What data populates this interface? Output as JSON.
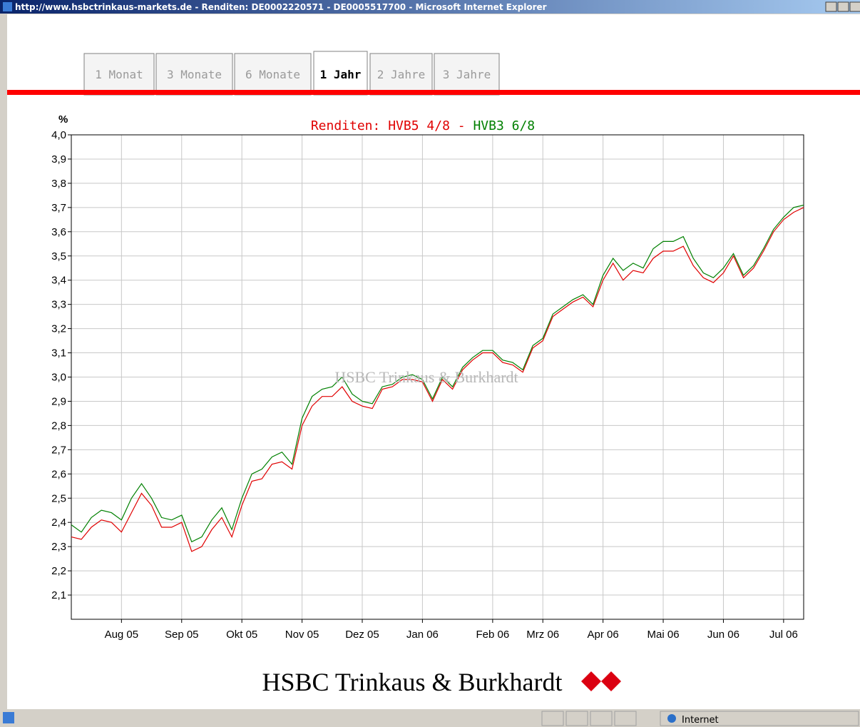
{
  "window": {
    "title": "http://www.hsbctrinkaus-markets.de - Renditen: DE0002220571 - DE0005517700 - Microsoft Internet Explorer"
  },
  "tabs": {
    "items": [
      "1 Monat",
      "3 Monate",
      "6 Monate",
      "1 Jahr",
      "2 Jahre",
      "3 Jahre"
    ],
    "active_index": 3
  },
  "chart_data": {
    "type": "line",
    "title": "Renditen:",
    "separator": "-",
    "y_label": "%",
    "watermark": "HSBC Trinkaus & Burkhardt",
    "categories": [
      null,
      null,
      null,
      null,
      null,
      "Aug 05",
      null,
      null,
      null,
      null,
      null,
      "Sep 05",
      null,
      null,
      null,
      null,
      null,
      "Okt 05",
      null,
      null,
      null,
      null,
      null,
      "Nov 05",
      null,
      null,
      null,
      null,
      null,
      "Dez 05",
      null,
      null,
      null,
      null,
      null,
      "Jan 06",
      null,
      null,
      null,
      null,
      null,
      null,
      "Feb 06",
      null,
      null,
      null,
      null,
      "Mrz 06",
      null,
      null,
      null,
      null,
      null,
      "Apr 06",
      null,
      null,
      null,
      null,
      null,
      "Mai 06",
      null,
      null,
      null,
      null,
      null,
      "Jun 06",
      null,
      null,
      null,
      null,
      null,
      "Jul 06",
      null,
      null
    ],
    "series": [
      {
        "name": "HVB5 4/8",
        "color": "#e00000",
        "values": [
          2.34,
          2.33,
          2.38,
          2.41,
          2.4,
          2.36,
          2.44,
          2.52,
          2.47,
          2.38,
          2.38,
          2.4,
          2.28,
          2.3,
          2.37,
          2.42,
          2.34,
          2.47,
          2.57,
          2.58,
          2.64,
          2.65,
          2.62,
          2.8,
          2.88,
          2.92,
          2.92,
          2.96,
          2.9,
          2.88,
          2.87,
          2.95,
          2.96,
          2.99,
          2.99,
          2.98,
          2.9,
          2.99,
          2.95,
          3.03,
          3.07,
          3.1,
          3.1,
          3.06,
          3.05,
          3.02,
          3.12,
          3.15,
          3.25,
          3.28,
          3.31,
          3.33,
          3.29,
          3.4,
          3.47,
          3.4,
          3.44,
          3.43,
          3.49,
          3.52,
          3.52,
          3.54,
          3.46,
          3.41,
          3.39,
          3.43,
          3.5,
          3.41,
          3.45,
          3.52,
          3.6,
          3.65,
          3.68,
          3.7
        ]
      },
      {
        "name": "HVB3 6/8",
        "color": "#008000",
        "values": [
          2.39,
          2.36,
          2.42,
          2.45,
          2.44,
          2.41,
          2.5,
          2.56,
          2.5,
          2.42,
          2.41,
          2.43,
          2.32,
          2.34,
          2.41,
          2.46,
          2.37,
          2.5,
          2.6,
          2.62,
          2.67,
          2.69,
          2.64,
          2.83,
          2.92,
          2.95,
          2.96,
          3.0,
          2.93,
          2.9,
          2.89,
          2.96,
          2.97,
          3.0,
          3.01,
          2.99,
          2.91,
          3.0,
          2.96,
          3.04,
          3.08,
          3.11,
          3.11,
          3.07,
          3.06,
          3.03,
          3.13,
          3.16,
          3.26,
          3.29,
          3.32,
          3.34,
          3.3,
          3.42,
          3.49,
          3.44,
          3.47,
          3.45,
          3.53,
          3.56,
          3.56,
          3.58,
          3.49,
          3.43,
          3.41,
          3.45,
          3.51,
          3.42,
          3.46,
          3.53,
          3.61,
          3.66,
          3.7,
          3.71
        ]
      }
    ],
    "ylim": [
      2.0,
      4.0
    ],
    "yticks": [
      {
        "value": 2.1,
        "label": "2,1"
      },
      {
        "value": 2.2,
        "label": "2,2"
      },
      {
        "value": 2.3,
        "label": "2,3"
      },
      {
        "value": 2.4,
        "label": "2,4"
      },
      {
        "value": 2.5,
        "label": "2,5"
      },
      {
        "value": 2.6,
        "label": "2,6"
      },
      {
        "value": 2.7,
        "label": "2,7"
      },
      {
        "value": 2.8,
        "label": "2,8"
      },
      {
        "value": 2.9,
        "label": "2,9"
      },
      {
        "value": 3.0,
        "label": "3,0"
      },
      {
        "value": 3.1,
        "label": "3,1"
      },
      {
        "value": 3.2,
        "label": "3,2"
      },
      {
        "value": 3.3,
        "label": "3,3"
      },
      {
        "value": 3.4,
        "label": "3,4"
      },
      {
        "value": 3.5,
        "label": "3,5"
      },
      {
        "value": 3.6,
        "label": "3,6"
      },
      {
        "value": 3.7,
        "label": "3,7"
      },
      {
        "value": 3.8,
        "label": "3,8"
      },
      {
        "value": 3.9,
        "label": "3,9"
      },
      {
        "value": 4.0,
        "label": "4,0"
      }
    ],
    "grid": true
  },
  "footer": {
    "logo_text": "HSBC Trinkaus & Burkhardt"
  },
  "status": {
    "zone": "Internet"
  }
}
